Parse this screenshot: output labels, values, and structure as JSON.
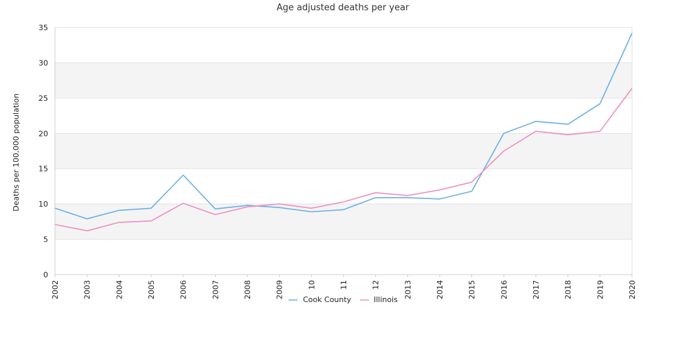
{
  "chart_data": {
    "type": "line",
    "title": "Age adjusted deaths per year",
    "xlabel": "",
    "ylabel": "Deaths per 100,000 population",
    "categories": [
      "2002",
      "2003",
      "2004",
      "2005",
      "2006",
      "2007",
      "2008",
      "2009",
      "10",
      "11",
      "12",
      "2013",
      "2014",
      "2015",
      "2016",
      "2017",
      "2018",
      "2019",
      "2020"
    ],
    "yticks": [
      "0",
      "5",
      "10",
      "15",
      "20",
      "25",
      "30",
      "35"
    ],
    "ylim": [
      0,
      35
    ],
    "grid": "alternating horizontal bands",
    "legend_position": "bottom-center",
    "series": [
      {
        "name": "Cook County",
        "color": "#6aaee8",
        "values": [
          9.4,
          7.9,
          9.1,
          9.4,
          14.1,
          9.3,
          9.8,
          9.5,
          8.9,
          9.2,
          10.9,
          10.9,
          10.7,
          11.8,
          20.0,
          21.7,
          21.3,
          24.2,
          34.2
        ]
      },
      {
        "name": "Illinois",
        "color": "#ee8fbf",
        "values": [
          7.1,
          6.2,
          7.4,
          7.6,
          10.1,
          8.5,
          9.6,
          10.0,
          9.4,
          10.3,
          11.6,
          11.2,
          12.0,
          13.1,
          17.5,
          20.3,
          19.8,
          20.3,
          26.4
        ]
      }
    ]
  }
}
